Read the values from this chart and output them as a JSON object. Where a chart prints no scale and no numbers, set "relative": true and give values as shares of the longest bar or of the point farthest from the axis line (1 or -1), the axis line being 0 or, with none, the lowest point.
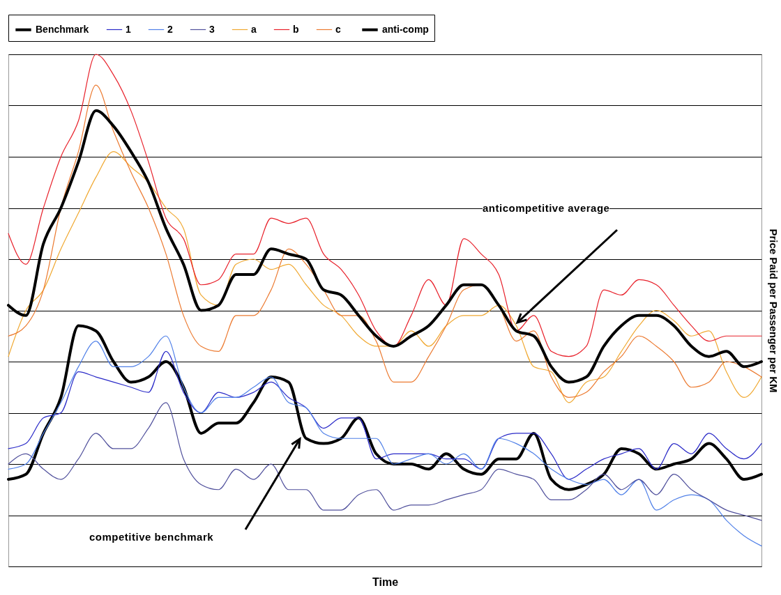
{
  "chart_data": {
    "type": "line",
    "xlabel": "Time",
    "ylabel": "Price Paid per Passenger per KM",
    "relative": true,
    "grid": "y",
    "legend": "top",
    "line_style": "solid",
    "marker": "none",
    "categories": [
      null,
      null,
      null,
      null,
      null,
      null,
      null,
      null,
      null,
      null,
      null,
      null,
      null,
      null,
      null,
      null,
      null,
      null,
      null,
      null,
      null,
      null,
      null,
      null,
      null,
      null,
      null,
      null,
      null,
      null,
      null,
      null,
      null,
      null,
      null,
      null,
      null,
      null,
      null,
      null,
      null,
      null,
      null,
      null
    ],
    "annotations": [
      "anticompetitive average",
      "competitive benchmark"
    ],
    "series": [
      {
        "name": "Benchmark",
        "color": "#000000",
        "values": [
          0.17,
          0.18,
          0.26,
          0.33,
          0.47,
          0.46,
          0.4,
          0.36,
          0.37,
          0.4,
          0.35,
          0.26,
          0.28,
          0.28,
          0.32,
          0.37,
          0.36,
          0.25,
          0.24,
          0.25,
          0.29,
          0.22,
          0.2,
          0.2,
          0.19,
          0.22,
          0.19,
          0.18,
          0.21,
          0.21,
          0.26,
          0.17,
          0.15,
          0.16,
          0.18,
          0.23,
          0.22,
          0.19,
          0.2,
          0.21,
          0.24,
          0.21,
          0.17,
          0.18
        ]
      },
      {
        "name": "1",
        "color": "#2a2ac8",
        "values": [
          0.23,
          0.24,
          0.29,
          0.3,
          0.38,
          0.37,
          0.36,
          0.35,
          0.34,
          0.42,
          0.34,
          0.3,
          0.34,
          0.33,
          0.34,
          0.36,
          0.33,
          0.31,
          0.27,
          0.29,
          0.29,
          0.21,
          0.22,
          0.22,
          0.22,
          0.21,
          0.21,
          0.19,
          0.25,
          0.26,
          0.26,
          0.22,
          0.17,
          0.19,
          0.21,
          0.22,
          0.23,
          0.19,
          0.24,
          0.22,
          0.26,
          0.23,
          0.21,
          0.24
        ]
      },
      {
        "name": "2",
        "color": "#5080e8",
        "values": [
          0.19,
          0.2,
          0.26,
          0.32,
          0.39,
          0.44,
          0.39,
          0.39,
          0.41,
          0.45,
          0.35,
          0.3,
          0.33,
          0.33,
          0.35,
          0.37,
          0.32,
          0.31,
          0.26,
          0.25,
          0.25,
          0.25,
          0.2,
          0.21,
          0.22,
          0.2,
          0.22,
          0.19,
          0.25,
          0.24,
          0.22,
          0.19,
          0.17,
          0.16,
          0.17,
          0.14,
          0.17,
          0.11,
          0.13,
          0.14,
          0.13,
          0.09,
          0.06,
          0.04
        ]
      },
      {
        "name": "3",
        "color": "#50509c",
        "values": [
          0.2,
          0.22,
          0.19,
          0.17,
          0.21,
          0.26,
          0.23,
          0.23,
          0.27,
          0.32,
          0.21,
          0.16,
          0.15,
          0.19,
          0.17,
          0.2,
          0.15,
          0.15,
          0.11,
          0.11,
          0.14,
          0.15,
          0.11,
          0.12,
          0.12,
          0.13,
          0.14,
          0.15,
          0.19,
          0.18,
          0.17,
          0.13,
          0.13,
          0.15,
          0.18,
          0.15,
          0.17,
          0.14,
          0.18,
          0.15,
          0.13,
          0.11,
          0.1,
          0.09
        ]
      },
      {
        "name": "a",
        "color": "#f0a830",
        "values": [
          0.41,
          0.5,
          0.54,
          0.62,
          0.69,
          0.76,
          0.81,
          0.78,
          0.75,
          0.7,
          0.66,
          0.53,
          0.51,
          0.59,
          0.6,
          0.58,
          0.59,
          0.55,
          0.51,
          0.49,
          0.45,
          0.43,
          0.43,
          0.46,
          0.43,
          0.47,
          0.49,
          0.49,
          0.51,
          0.47,
          0.39,
          0.38,
          0.32,
          0.36,
          0.37,
          0.42,
          0.47,
          0.5,
          0.48,
          0.45,
          0.46,
          0.38,
          0.33,
          0.37
        ]
      },
      {
        "name": "b",
        "color": "#e8202a",
        "values": [
          0.65,
          0.59,
          0.7,
          0.8,
          0.87,
          1.0,
          0.96,
          0.89,
          0.79,
          0.68,
          0.64,
          0.55,
          0.56,
          0.61,
          0.61,
          0.68,
          0.67,
          0.68,
          0.61,
          0.58,
          0.53,
          0.46,
          0.43,
          0.49,
          0.56,
          0.51,
          0.64,
          0.61,
          0.57,
          0.46,
          0.49,
          0.42,
          0.41,
          0.43,
          0.54,
          0.53,
          0.56,
          0.55,
          0.51,
          0.47,
          0.44,
          0.45,
          0.45,
          0.45
        ]
      },
      {
        "name": "c",
        "color": "#ec7a30",
        "values": [
          0.45,
          0.47,
          0.54,
          0.7,
          0.81,
          0.94,
          0.85,
          0.77,
          0.7,
          0.61,
          0.49,
          0.43,
          0.42,
          0.49,
          0.49,
          0.54,
          0.62,
          0.59,
          0.54,
          0.49,
          0.49,
          0.44,
          0.36,
          0.36,
          0.41,
          0.47,
          0.54,
          0.55,
          0.51,
          0.44,
          0.46,
          0.37,
          0.33,
          0.34,
          0.38,
          0.41,
          0.45,
          0.43,
          0.4,
          0.35,
          0.36,
          0.4,
          0.39,
          0.37
        ]
      },
      {
        "name": "anti-comp",
        "color": "#000000",
        "values": [
          0.51,
          0.49,
          0.63,
          0.7,
          0.79,
          0.89,
          0.86,
          0.81,
          0.75,
          0.66,
          0.59,
          0.5,
          0.51,
          0.57,
          0.57,
          0.62,
          0.61,
          0.6,
          0.54,
          0.53,
          0.49,
          0.45,
          0.43,
          0.45,
          0.47,
          0.51,
          0.55,
          0.55,
          0.51,
          0.46,
          0.45,
          0.39,
          0.36,
          0.37,
          0.43,
          0.47,
          0.49,
          0.49,
          0.47,
          0.43,
          0.41,
          0.42,
          0.39,
          0.4
        ]
      }
    ]
  }
}
